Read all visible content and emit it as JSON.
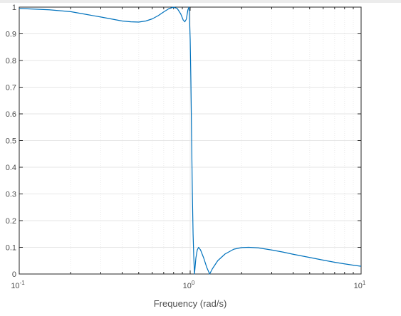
{
  "chart_data": {
    "type": "line",
    "title": "",
    "xlabel": "Frequency (rad/s)",
    "ylabel": "",
    "x_scale": "log",
    "xlim": [
      0.1,
      10
    ],
    "ylim": [
      0,
      1
    ],
    "grid": true,
    "x_ticks": [
      {
        "value": 0.1,
        "base": "10",
        "exp": "-1"
      },
      {
        "value": 1,
        "base": "10",
        "exp": "0"
      },
      {
        "value": 10,
        "base": "10",
        "exp": "1"
      }
    ],
    "y_ticks": [
      {
        "value": 0,
        "label": "0"
      },
      {
        "value": 0.1,
        "label": "0.1"
      },
      {
        "value": 0.2,
        "label": "0.2"
      },
      {
        "value": 0.3,
        "label": "0.3"
      },
      {
        "value": 0.4,
        "label": "0.4"
      },
      {
        "value": 0.5,
        "label": "0.5"
      },
      {
        "value": 0.6,
        "label": "0.6"
      },
      {
        "value": 0.7,
        "label": "0.7"
      },
      {
        "value": 0.8,
        "label": "0.8"
      },
      {
        "value": 0.9,
        "label": "0.9"
      },
      {
        "value": 1,
        "label": "1"
      }
    ],
    "series": [
      {
        "color": "#0072bd",
        "points": [
          [
            0.1,
            0.995
          ],
          [
            0.15,
            0.99
          ],
          [
            0.2,
            0.983
          ],
          [
            0.25,
            0.972
          ],
          [
            0.3,
            0.963
          ],
          [
            0.35,
            0.955
          ],
          [
            0.4,
            0.948
          ],
          [
            0.45,
            0.945
          ],
          [
            0.5,
            0.944
          ],
          [
            0.55,
            0.948
          ],
          [
            0.6,
            0.956
          ],
          [
            0.65,
            0.968
          ],
          [
            0.7,
            0.982
          ],
          [
            0.75,
            0.994
          ],
          [
            0.8,
            1.0
          ],
          [
            0.84,
            0.995
          ],
          [
            0.88,
            0.975
          ],
          [
            0.91,
            0.952
          ],
          [
            0.93,
            0.945
          ],
          [
            0.95,
            0.955
          ],
          [
            0.97,
            0.99
          ],
          [
            0.985,
            1.0
          ],
          [
            0.99,
            0.97
          ],
          [
            1.0,
            0.88
          ],
          [
            1.01,
            0.72
          ],
          [
            1.02,
            0.5
          ],
          [
            1.03,
            0.3
          ],
          [
            1.04,
            0.15
          ],
          [
            1.05,
            0.06
          ],
          [
            1.06,
            0.0
          ],
          [
            1.08,
            0.06
          ],
          [
            1.1,
            0.09
          ],
          [
            1.12,
            0.1
          ],
          [
            1.15,
            0.09
          ],
          [
            1.2,
            0.06
          ],
          [
            1.25,
            0.025
          ],
          [
            1.3,
            0.0
          ],
          [
            1.35,
            0.02
          ],
          [
            1.45,
            0.05
          ],
          [
            1.6,
            0.075
          ],
          [
            1.8,
            0.093
          ],
          [
            2.0,
            0.099
          ],
          [
            2.2,
            0.1
          ],
          [
            2.5,
            0.098
          ],
          [
            3.0,
            0.09
          ],
          [
            3.5,
            0.082
          ],
          [
            4.0,
            0.074
          ],
          [
            5.0,
            0.062
          ],
          [
            6.0,
            0.052
          ],
          [
            7.0,
            0.044
          ],
          [
            8.0,
            0.038
          ],
          [
            9.0,
            0.033
          ],
          [
            10.0,
            0.029
          ]
        ]
      }
    ]
  },
  "colors": {
    "line": "#0072bd",
    "grid_major": "#e6e6e6",
    "grid_minor": "#ececec",
    "axes": "#262626",
    "text": "#4d4d4d"
  }
}
